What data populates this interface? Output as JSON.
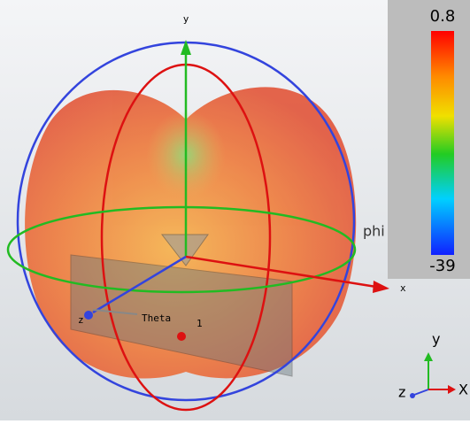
{
  "scene": {
    "axes": {
      "x": "x",
      "y": "y",
      "z": "z"
    },
    "angle_labels": {
      "phi": "phi",
      "theta": "Theta",
      "marker": "1"
    },
    "triad": {
      "x": "X",
      "y": "y",
      "z": "z"
    }
  },
  "colorbar": {
    "max": 0.8,
    "min": -39
  }
}
